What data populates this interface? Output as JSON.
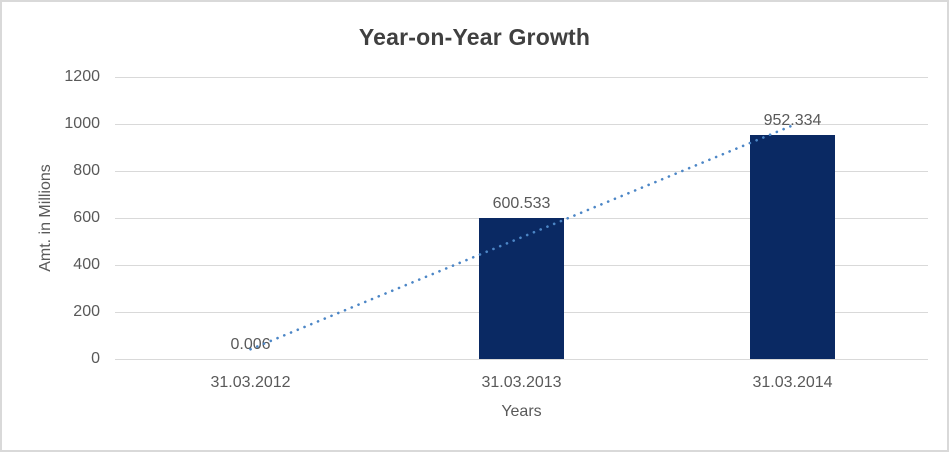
{
  "chart_data": {
    "type": "bar",
    "title": "Year-on-Year Growth",
    "categories": [
      "31.03.2012",
      "31.03.2013",
      "31.03.2014"
    ],
    "values": [
      0.006,
      600.533,
      952.334
    ],
    "data_labels": [
      "0.006",
      "600.533",
      "952.334"
    ],
    "xlabel": "Years",
    "ylabel": "Amt. in Millions",
    "ylim": [
      0,
      1200
    ],
    "y_ticks": [
      0,
      200,
      400,
      600,
      800,
      1000,
      1200
    ],
    "grid": true,
    "legend": "none",
    "bar_color": "#0a2963",
    "gridline_color": "#d9d9d9",
    "axis_text_color": "#595959",
    "title_color": "#404040",
    "trendline": {
      "type": "linear",
      "style": "dotted",
      "color": "#4c86c6"
    }
  }
}
